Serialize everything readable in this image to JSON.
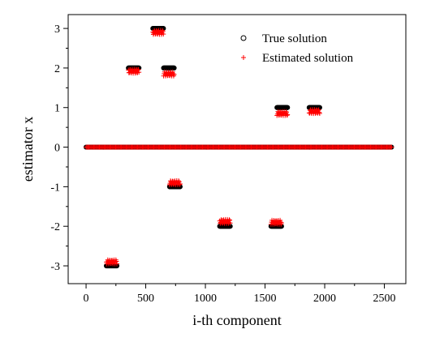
{
  "chart_data": {
    "type": "scatter",
    "xlabel": "i-th component",
    "ylabel": "estimator x",
    "xlim": [
      -150,
      2680
    ],
    "ylim": [
      -3.45,
      3.35
    ],
    "xticks": [
      0,
      500,
      1000,
      1500,
      2000,
      2500
    ],
    "yticks": [
      -3,
      -2,
      -1,
      0,
      1,
      2,
      3
    ],
    "grid": false,
    "legend_position": "top-right",
    "true_color": "#000000",
    "estimated_color": "#ff0000",
    "series": [
      {
        "name": "True solution",
        "marker": "circle",
        "segments": [
          {
            "x_start": 0,
            "x_end": 2560,
            "y": 0
          },
          {
            "x_start": 170,
            "x_end": 260,
            "y": -3
          },
          {
            "x_start": 355,
            "x_end": 445,
            "y": 2
          },
          {
            "x_start": 560,
            "x_end": 650,
            "y": 3
          },
          {
            "x_start": 650,
            "x_end": 740,
            "y": 2
          },
          {
            "x_start": 700,
            "x_end": 790,
            "y": -1
          },
          {
            "x_start": 1120,
            "x_end": 1210,
            "y": -2
          },
          {
            "x_start": 1550,
            "x_end": 1640,
            "y": -2
          },
          {
            "x_start": 1600,
            "x_end": 1690,
            "y": 1
          },
          {
            "x_start": 1870,
            "x_end": 1960,
            "y": 1
          }
        ]
      },
      {
        "name": "Estimated solution",
        "marker": "plus",
        "segments": [
          {
            "x_start": 0,
            "x_end": 2560,
            "y": 0
          },
          {
            "x_start": 170,
            "x_end": 260,
            "y": -2.9
          },
          {
            "x_start": 355,
            "x_end": 445,
            "y": 1.92
          },
          {
            "x_start": 560,
            "x_end": 650,
            "y": 2.9
          },
          {
            "x_start": 650,
            "x_end": 740,
            "y": 1.85
          },
          {
            "x_start": 700,
            "x_end": 790,
            "y": -0.9
          },
          {
            "x_start": 1120,
            "x_end": 1210,
            "y": -1.88
          },
          {
            "x_start": 1550,
            "x_end": 1640,
            "y": -1.9
          },
          {
            "x_start": 1600,
            "x_end": 1690,
            "y": 0.85
          },
          {
            "x_start": 1870,
            "x_end": 1960,
            "y": 0.9
          }
        ]
      }
    ]
  }
}
